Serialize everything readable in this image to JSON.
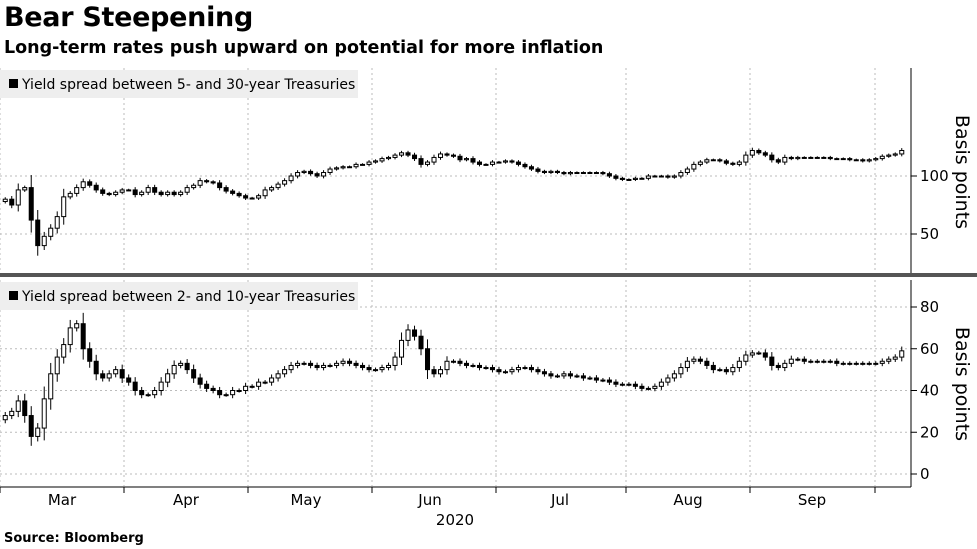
{
  "title": "Bear Steepening",
  "subtitle": "Long-term rates push upward on potential for more inflation",
  "source": "Source: Bloomberg",
  "colors": {
    "candle_up": "#ffffff",
    "candle_down": "#000000",
    "grid": "#bbbbbb",
    "legend_bg": "#eeeeee",
    "divider": "#555555"
  },
  "chart_data": [
    {
      "type": "candlestick",
      "legend": "Yield spread between 5- and 30-year Treasuries",
      "ylabel": "Basis points",
      "yticks": [
        50,
        100
      ],
      "ylim": [
        28,
        128
      ],
      "xticks": [
        "Mar",
        "Apr",
        "May",
        "Jun",
        "Jul",
        "Aug",
        "Sep"
      ],
      "xlabel": "2020",
      "grid": true,
      "close": [
        80,
        75,
        88,
        90,
        62,
        40,
        48,
        55,
        65,
        82,
        85,
        90,
        95,
        92,
        88,
        85,
        84,
        86,
        88,
        88,
        84,
        86,
        90,
        86,
        84,
        86,
        84,
        86,
        90,
        92,
        96,
        95,
        94,
        90,
        87,
        85,
        83,
        81,
        81,
        83,
        88,
        90,
        93,
        96,
        100,
        103,
        104,
        102,
        100,
        103,
        106,
        107,
        108,
        108,
        110,
        110,
        112,
        113,
        115,
        116,
        118,
        120,
        118,
        115,
        110,
        112,
        116,
        119,
        118,
        117,
        114,
        115,
        112,
        110,
        110,
        112,
        112,
        113,
        112,
        110,
        108,
        106,
        104,
        103,
        104,
        103,
        102,
        103,
        103,
        103,
        103,
        103,
        102,
        100,
        98,
        97,
        97,
        98,
        98,
        100,
        100,
        100,
        99,
        100,
        103,
        106,
        110,
        112,
        114,
        114,
        113,
        111,
        110,
        112,
        118,
        122,
        120,
        118,
        114,
        112,
        116,
        115,
        116,
        116,
        116,
        116,
        116,
        115,
        115,
        115,
        114,
        114,
        113,
        114,
        115,
        117,
        118,
        119,
        122
      ]
    },
    {
      "type": "candlestick",
      "legend": "Yield spread between 2- and 10-year Treasuries",
      "ylabel": "Basis points",
      "yticks": [
        0,
        20,
        40,
        60,
        80
      ],
      "ylim": [
        -5,
        90
      ],
      "xticks": [
        "Mar",
        "Apr",
        "May",
        "Jun",
        "Jul",
        "Aug",
        "Sep"
      ],
      "xlabel": "2020",
      "grid": true,
      "close": [
        28,
        30,
        35,
        28,
        18,
        22,
        36,
        48,
        56,
        62,
        70,
        72,
        60,
        54,
        48,
        46,
        48,
        50,
        46,
        44,
        40,
        38,
        38,
        40,
        44,
        48,
        52,
        53,
        50,
        46,
        43,
        41,
        40,
        38,
        38,
        40,
        40,
        42,
        42,
        44,
        44,
        46,
        48,
        50,
        52,
        53,
        53,
        52,
        51,
        52,
        52,
        53,
        54,
        53,
        52,
        51,
        50,
        50,
        51,
        52,
        56,
        64,
        69,
        66,
        60,
        50,
        48,
        50,
        54,
        54,
        53,
        52,
        52,
        51,
        51,
        50,
        49,
        49,
        50,
        51,
        51,
        50,
        49,
        48,
        47,
        47,
        48,
        47,
        47,
        46,
        46,
        45,
        45,
        44,
        43,
        43,
        43,
        42,
        41,
        41,
        42,
        44,
        46,
        48,
        51,
        54,
        55,
        54,
        52,
        50,
        50,
        49,
        51,
        54,
        57,
        58,
        58,
        56,
        52,
        51,
        53,
        55,
        55,
        54,
        54,
        54,
        54,
        54,
        53,
        53,
        53,
        53,
        53,
        53,
        53,
        54,
        55,
        56,
        59
      ]
    }
  ]
}
